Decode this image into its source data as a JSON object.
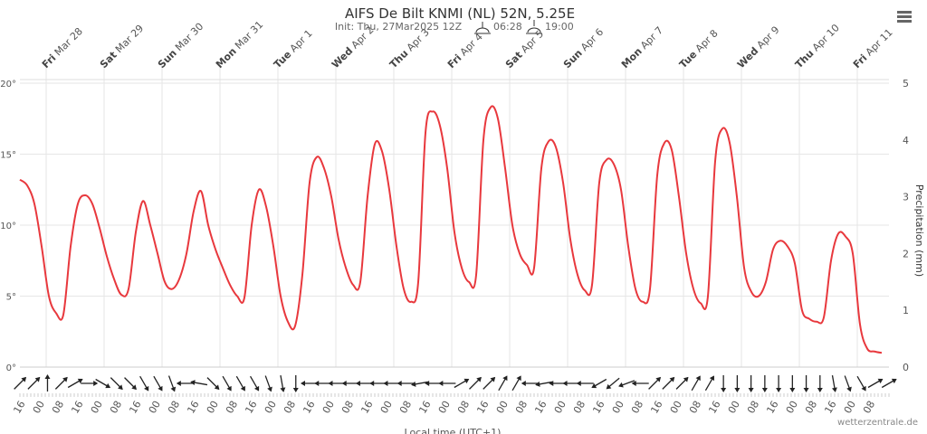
{
  "chart_data": {
    "type": "line",
    "title": "AIFS De Bilt KNMI (NL) 52N, 5.25E",
    "subtitle": "Init: Thu, 27Mar2025 12Z",
    "sunrise": "06:28",
    "sunset": "19:00",
    "days": [
      {
        "day": "Fri",
        "date": "Mar 28"
      },
      {
        "day": "Sat",
        "date": "Mar 29"
      },
      {
        "day": "Sun",
        "date": "Mar 30"
      },
      {
        "day": "Mon",
        "date": "Mar 31"
      },
      {
        "day": "Tue",
        "date": "Apr 1"
      },
      {
        "day": "Wed",
        "date": "Apr 2"
      },
      {
        "day": "Thu",
        "date": "Apr 3"
      },
      {
        "day": "Fri",
        "date": "Apr 4"
      },
      {
        "day": "Sat",
        "date": "Apr 5"
      },
      {
        "day": "Sun",
        "date": "Apr 6"
      },
      {
        "day": "Mon",
        "date": "Apr 7"
      },
      {
        "day": "Tue",
        "date": "Apr 8"
      },
      {
        "day": "Wed",
        "date": "Apr 9"
      },
      {
        "day": "Thu",
        "date": "Apr 10"
      },
      {
        "day": "Fri",
        "date": "Apr 11"
      }
    ],
    "hours": [
      "16",
      "00",
      "08",
      "16",
      "00",
      "08",
      "16",
      "00",
      "08",
      "16",
      "00",
      "08",
      "16",
      "00",
      "08",
      "16",
      "00",
      "08",
      "16",
      "00",
      "08",
      "16",
      "00",
      "08",
      "16",
      "00",
      "08",
      "16",
      "00",
      "08",
      "16",
      "00",
      "08",
      "16",
      "00",
      "08",
      "16",
      "00",
      "08",
      "16",
      "00",
      "08",
      "16",
      "00",
      "08"
    ],
    "xlabel": "Local time (UTC+1)",
    "y2label": "Precipitation (mm)",
    "credit": "wetterzentrale.de",
    "ylim": [
      0,
      20
    ],
    "yticks": [
      {
        "value": 0,
        "label": "0°"
      },
      {
        "value": 5,
        "label": "5°"
      },
      {
        "value": 10,
        "label": "10°"
      },
      {
        "value": 15,
        "label": "15°"
      },
      {
        "value": 20,
        "label": "20°"
      }
    ],
    "y2lim": [
      0,
      5
    ],
    "y2ticks": [
      0,
      1,
      2,
      3,
      4,
      5
    ],
    "grid": true,
    "series": [
      {
        "color": "#e8383d",
        "values": [
          13.2,
          12.8,
          11.5,
          8.5,
          5.0,
          3.8,
          3.7,
          8.5,
          11.5,
          12.1,
          11.5,
          9.8,
          7.8,
          6.2,
          5.1,
          5.5,
          9.5,
          11.7,
          10.0,
          8.0,
          6.0,
          5.5,
          6.2,
          8.0,
          11.0,
          12.4,
          10.0,
          8.3,
          7.0,
          5.8,
          5.0,
          4.9,
          10.0,
          12.5,
          11.3,
          8.5,
          5.0,
          3.2,
          2.9,
          6.5,
          13.0,
          14.8,
          14.0,
          12.0,
          9.0,
          7.0,
          5.8,
          6.0,
          12.0,
          15.7,
          15.2,
          12.5,
          8.5,
          5.5,
          4.6,
          6.0,
          16.5,
          18.0,
          17.0,
          14.0,
          9.5,
          7.0,
          6.0,
          6.5,
          16.0,
          18.3,
          17.5,
          14.0,
          10.0,
          8.0,
          7.2,
          7.0,
          14.0,
          15.9,
          15.5,
          13.0,
          9.0,
          6.5,
          5.4,
          5.8,
          13.0,
          14.6,
          14.3,
          12.5,
          8.5,
          5.5,
          4.6,
          5.5,
          13.5,
          15.8,
          15.3,
          12.0,
          8.0,
          5.5,
          4.5,
          5.0,
          14.5,
          16.8,
          15.8,
          12.0,
          7.0,
          5.3,
          5.0,
          6.0,
          8.3,
          8.9,
          8.5,
          7.3,
          4.0,
          3.4,
          3.2,
          3.5,
          7.5,
          9.4,
          9.2,
          8.0,
          3.0,
          1.3,
          1.1,
          1.0
        ]
      }
    ],
    "wind": {
      "values": [
        45,
        45,
        0,
        45,
        60,
        90,
        120,
        135,
        135,
        150,
        150,
        160,
        270,
        280,
        135,
        150,
        150,
        150,
        160,
        170,
        180,
        270,
        270,
        270,
        270,
        270,
        270,
        270,
        270,
        260,
        270,
        270,
        60,
        45,
        45,
        30,
        30,
        270,
        260,
        270,
        270,
        270,
        240,
        230,
        250,
        270,
        45,
        45,
        45,
        30,
        30,
        180,
        180,
        180,
        180,
        180,
        180,
        180,
        180,
        170,
        160,
        150,
        60,
        60
      ]
    }
  }
}
